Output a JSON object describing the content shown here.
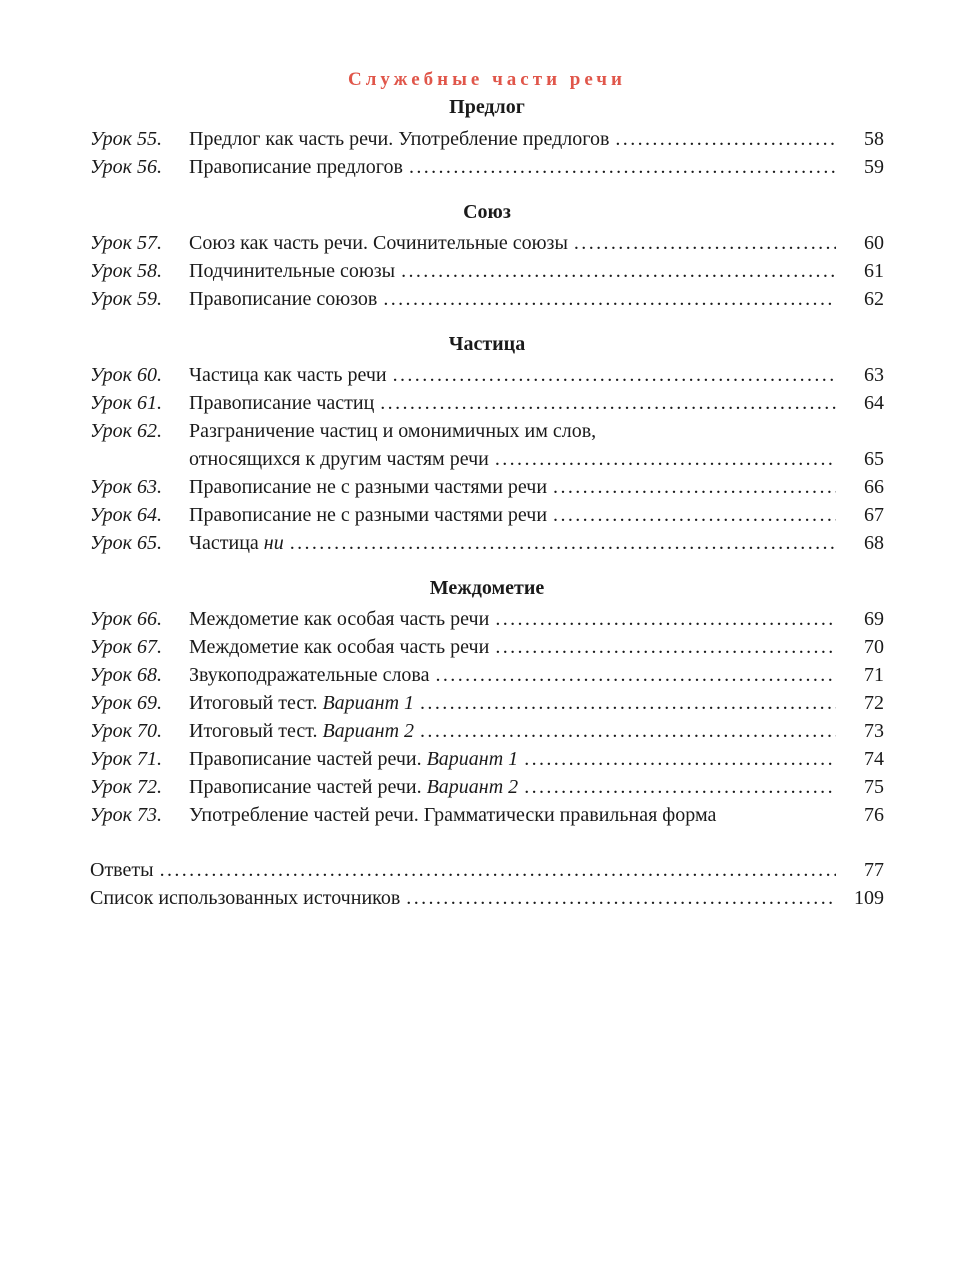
{
  "part_title": "Служебные части речи",
  "sections": [
    {
      "heading": "Предлог",
      "entries": [
        {
          "label": "Урок 55.",
          "title": "Предлог как часть речи. Употребление предлогов",
          "page": "58"
        },
        {
          "label": "Урок 56.",
          "title": "Правописание предлогов",
          "page": "59"
        }
      ]
    },
    {
      "heading": "Союз",
      "entries": [
        {
          "label": "Урок 57.",
          "title": "Союз как часть речи. Сочинительные союзы",
          "page": "60"
        },
        {
          "label": "Урок 58.",
          "title": "Подчинительные союзы",
          "page": "61"
        },
        {
          "label": "Урок 59.",
          "title": "Правописание союзов",
          "page": "62"
        }
      ]
    },
    {
      "heading": "Частица",
      "entries": [
        {
          "label": "Урок 60.",
          "title": "Частица как часть речи",
          "page": "63"
        },
        {
          "label": "Урок 61.",
          "title": "Правописание частиц",
          "page": "64"
        },
        {
          "label": "Урок 62.",
          "title": "Разграничение частиц и омонимичных им слов,",
          "title_cont": "относящихся к другим частям речи",
          "page": "65"
        },
        {
          "label": "Урок 63.",
          "title": "Правописание не с разными частями речи",
          "page": "66"
        },
        {
          "label": "Урок 64.",
          "title": "Правописание не с разными частями речи",
          "page": "67"
        },
        {
          "label": "Урок 65.",
          "title": "Частица ",
          "title_italic": "ни",
          "page": "68"
        }
      ]
    },
    {
      "heading": "Междометие",
      "entries": [
        {
          "label": "Урок 66.",
          "title": "Междометие как особая часть речи",
          "page": "69"
        },
        {
          "label": "Урок 67.",
          "title": "Междометие как особая часть речи",
          "page": "70"
        },
        {
          "label": "Урок 68.",
          "title": "Звукоподражательные слова",
          "page": "71"
        },
        {
          "label": "Урок 69.",
          "title": "Итоговый тест. ",
          "title_italic": "Вариант 1",
          "page": "72"
        },
        {
          "label": "Урок 70.",
          "title": "Итоговый тест. ",
          "title_italic": "Вариант 2",
          "page": "73"
        },
        {
          "label": "Урок 71.",
          "title": "Правописание частей речи. ",
          "title_italic": "Вариант 1",
          "page": "74"
        },
        {
          "label": "Урок 72.",
          "title": "Правописание частей речи. ",
          "title_italic": "Вариант 2",
          "page": "75"
        },
        {
          "label": "Урок 73.",
          "title": "Употребление частей речи. Грамматически правильная форма",
          "page": "76",
          "no_leader": true
        }
      ]
    }
  ],
  "tail": [
    {
      "title": "Ответы",
      "page": "77"
    },
    {
      "title": "Список использованных источников",
      "page": "109"
    }
  ],
  "colors": {
    "part_title": "#e0564a",
    "text": "#1a1a1a"
  }
}
